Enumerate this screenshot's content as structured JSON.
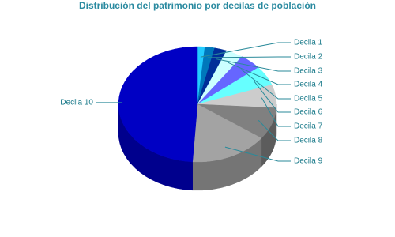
{
  "chart_data": {
    "type": "pie",
    "title": "Distribución del patrimonio por decilas de población",
    "categories": [
      "Decila 1",
      "Decila 2",
      "Decila 3",
      "Decila 4",
      "Decila 5",
      "Decila 6",
      "Decila 7",
      "Decila 8",
      "Decila 9",
      "Decila 10"
    ],
    "values": [
      1.5,
      2,
      2.5,
      3.5,
      4.5,
      5.5,
      6.5,
      9,
      16,
      49
    ],
    "colors": [
      "#22ccff",
      "#0077bb",
      "#002e99",
      "#ccffff",
      "#6666ff",
      "#66ffff",
      "#cccccc",
      "#808080",
      "#a3a3a3",
      "#0000c4"
    ]
  }
}
